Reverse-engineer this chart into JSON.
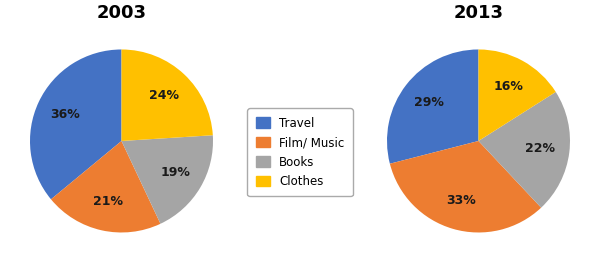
{
  "title_2003": "2003",
  "title_2013": "2013",
  "labels": [
    "Travel",
    "Film/ Music",
    "Books",
    "Clothes"
  ],
  "values_2003": [
    36,
    21,
    19,
    24
  ],
  "values_2013": [
    29,
    33,
    22,
    16
  ],
  "colors": [
    "#4472C4",
    "#ED7D31",
    "#A5A5A5",
    "#FFC000"
  ],
  "legend_labels": [
    "Travel",
    "Film/ Music",
    "Books",
    "Clothes"
  ],
  "title_fontsize": 13,
  "pct_fontsize": 9,
  "background_color": "#ffffff",
  "startangle_2003": 90,
  "startangle_2013": 90
}
